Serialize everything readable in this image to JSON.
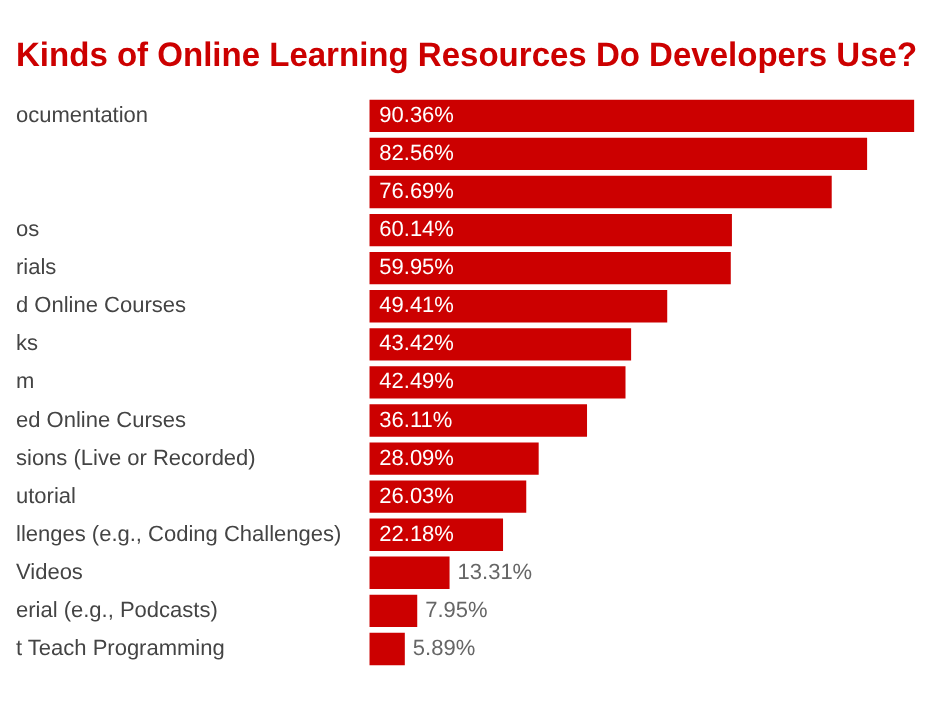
{
  "chart_data": {
    "type": "bar",
    "orientation": "horizontal",
    "title": "Kinds of Online Learning Resources Do Developers Use?",
    "categories": [
      "ocumentation",
      null,
      null,
      "os",
      "rials",
      "d Online Courses",
      "ks",
      "m",
      "ed Online Curses",
      "sions (Live or Recorded)",
      "utorial",
      "llenges (e.g., Coding Challenges)",
      "Videos",
      "erial (e.g., Podcasts)",
      "t Teach Programming"
    ],
    "values": [
      90.36,
      82.56,
      76.69,
      60.14,
      59.95,
      49.41,
      43.42,
      42.49,
      36.11,
      28.09,
      26.03,
      22.18,
      13.31,
      7.95,
      5.89
    ],
    "value_labels": [
      "90.36%",
      "82.56%",
      "76.69%",
      "60.14%",
      "59.95%",
      "49.41%",
      "43.42%",
      "42.49%",
      "36.11%",
      "28.09%",
      "26.03%",
      "22.18%",
      "13.31%",
      "7.95%",
      "5.89%"
    ],
    "color": "#cc0000",
    "xlim": [
      0,
      91
    ],
    "grid": false,
    "legend": false,
    "tick_labels": "y"
  }
}
